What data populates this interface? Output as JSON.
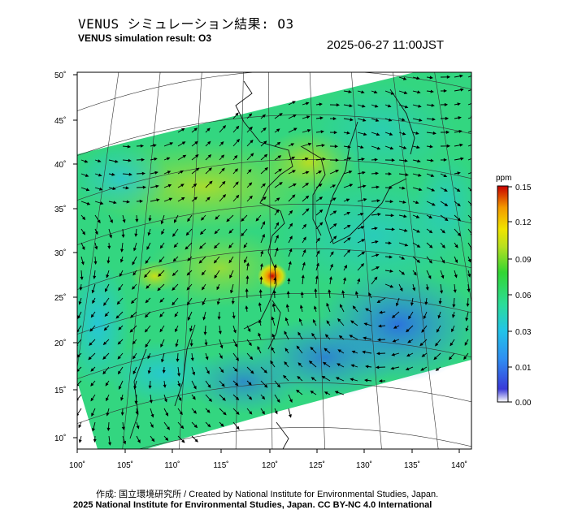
{
  "title_jp": "VENUS シミュレーション結果: O3",
  "title_en": "VENUS simulation result: O3",
  "timestamp": "2025-06-27 11:00JST",
  "credit_line1": "作成: 国立環境研究所 / Created by National Institute for Environmental Studies, Japan.",
  "credit_line2": "2025 National Institute for Environmental Studies, Japan. CC BY-NC 4.0 International",
  "map": {
    "lat_labels": [
      "50˚",
      "45˚",
      "40˚",
      "35˚",
      "30˚",
      "25˚",
      "20˚",
      "15˚",
      "10˚"
    ],
    "lon_labels": [
      "100˚",
      "105˚",
      "110˚",
      "115˚",
      "120˚",
      "125˚",
      "130˚",
      "135˚",
      "140˚"
    ]
  },
  "colorbar": {
    "unit": "ppm",
    "ticks": [
      "0.15",
      "0.12",
      "0.09",
      "0.06",
      "0.03",
      "0.01",
      "0.00"
    ],
    "colors": [
      "#ffffff",
      "#1a4fd6",
      "#2f8ff2",
      "#22c4e8",
      "#2bdc9a",
      "#33d633",
      "#9ee02a",
      "#f0e400",
      "#f39a00",
      "#e03a00",
      "#c80000"
    ]
  },
  "colors": {
    "field_base": "#33d680",
    "ocean_low": "#2f8ff2",
    "hotspot": "#e03a00"
  }
}
